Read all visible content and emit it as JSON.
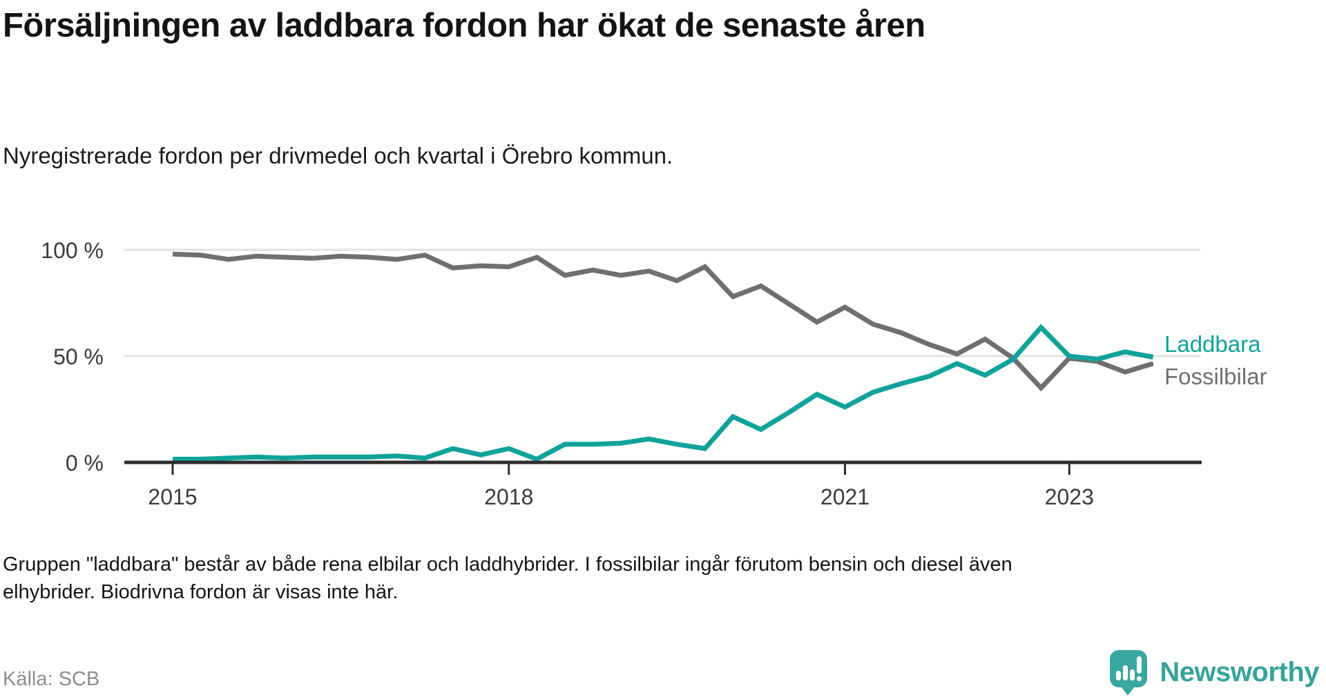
{
  "header": {
    "title": "Försäljningen av laddbara fordon har ökat de senaste åren",
    "subtitle": "Nyregistrerade fordon per drivmedel och kvartal i Örebro kommun."
  },
  "chart_data": {
    "type": "line",
    "title": "Försäljningen av laddbara fordon har ökat de senaste åren",
    "unit": "%",
    "grid": "horizontal",
    "legend_position": "right-end-of-lines",
    "x_axis": {
      "tick_labels": [
        "2015",
        "2018",
        "2021",
        "2023"
      ],
      "tick_indices": [
        0,
        12,
        24,
        32
      ]
    },
    "y_axis": {
      "tick_labels": [
        "100 %",
        "50 %",
        "0 %"
      ],
      "tick_values": [
        100,
        50,
        0
      ],
      "range": [
        0,
        100
      ]
    },
    "periods": [
      "2015 K1",
      "2015 K2",
      "2015 K3",
      "2015 K4",
      "2016 K1",
      "2016 K2",
      "2016 K3",
      "2016 K4",
      "2017 K1",
      "2017 K2",
      "2017 K3",
      "2017 K4",
      "2018 K1",
      "2018 K2",
      "2018 K3",
      "2018 K4",
      "2019 K1",
      "2019 K2",
      "2019 K3",
      "2019 K4",
      "2020 K1",
      "2020 K2",
      "2020 K3",
      "2020 K4",
      "2021 K1",
      "2021 K2",
      "2021 K3",
      "2021 K4",
      "2022 K1",
      "2022 K2",
      "2022 K3",
      "2022 K4",
      "2023 K1",
      "2023 K2",
      "2023 K3",
      "2023 K4"
    ],
    "series": [
      {
        "name": "Fossilbilar",
        "color": "#6F6F6F",
        "values": [
          98,
          97.5,
          95.5,
          97,
          96.5,
          96,
          97,
          96.5,
          95.5,
          97.5,
          91.5,
          92.5,
          92,
          96.5,
          88,
          90.5,
          88,
          90,
          85.5,
          92,
          78,
          83,
          74.5,
          66,
          73,
          65,
          61,
          55.5,
          51,
          58,
          49,
          35,
          49,
          47.5,
          42.5,
          46.5
        ]
      },
      {
        "name": "Laddbara",
        "color": "#0FA39A",
        "values": [
          1.5,
          1.5,
          2,
          2.5,
          2,
          2.5,
          2.5,
          2.5,
          3,
          2,
          6.5,
          3.5,
          6.5,
          1.5,
          8.5,
          8.5,
          9,
          11,
          8.5,
          6.5,
          21.5,
          15.5,
          23.5,
          32,
          26,
          33,
          37,
          40.5,
          46.5,
          41,
          48.5,
          63.5,
          50,
          48.5,
          52,
          49.5
        ]
      }
    ]
  },
  "footer": {
    "note_lines": [
      "Gruppen \"laddbara\" består av både rena elbilar och laddhybrider. I fossilbilar ingår förutom bensin och diesel även",
      "elhybrider. Biodrivna fordon är visas inte här."
    ],
    "source": "Källa: SCB"
  },
  "branding": {
    "wordmark": "Newsworthy",
    "logo_color": "#3AA79F",
    "icon": "newsworthy-speech-bubble-chart-icon"
  }
}
